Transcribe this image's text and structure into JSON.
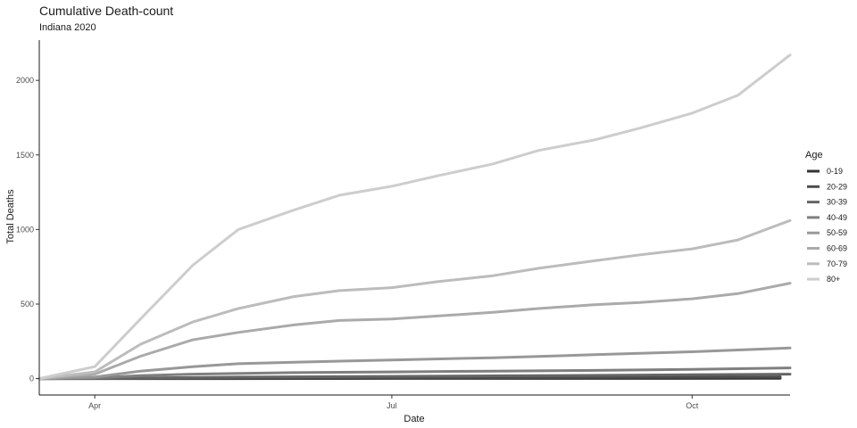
{
  "chart_data": {
    "type": "line",
    "title": "Cumulative Death-count",
    "subtitle": "Indiana 2020",
    "xlabel": "Date",
    "ylabel": "Total Deaths",
    "x_ticks": [
      "Apr",
      "Jul",
      "Oct"
    ],
    "x_tick_dates": [
      "2020-04-01",
      "2020-07-01",
      "2020-10-01"
    ],
    "xlim": [
      "2020-03-15",
      "2020-10-31"
    ],
    "ylim": [
      -110,
      2270
    ],
    "y_ticks": [
      0,
      500,
      1000,
      1500,
      2000
    ],
    "grid": false,
    "legend_title": "Age",
    "legend_position": "right",
    "series": [
      {
        "name": "0-19",
        "color": "#333333",
        "points": [
          [
            "2020-03-15",
            0
          ],
          [
            "2020-05-01",
            0
          ],
          [
            "2020-07-01",
            1
          ],
          [
            "2020-09-01",
            1
          ],
          [
            "2020-10-28",
            2
          ]
        ]
      },
      {
        "name": "20-29",
        "color": "#4d4d4d",
        "points": [
          [
            "2020-03-15",
            0
          ],
          [
            "2020-04-20",
            1
          ],
          [
            "2020-06-01",
            3
          ],
          [
            "2020-07-15",
            5
          ],
          [
            "2020-09-01",
            8
          ],
          [
            "2020-10-28",
            12
          ]
        ]
      },
      {
        "name": "30-39",
        "color": "#666666",
        "points": [
          [
            "2020-03-15",
            0
          ],
          [
            "2020-04-15",
            4
          ],
          [
            "2020-05-15",
            10
          ],
          [
            "2020-07-01",
            15
          ],
          [
            "2020-08-15",
            20
          ],
          [
            "2020-10-01",
            26
          ],
          [
            "2020-10-31",
            30
          ]
        ]
      },
      {
        "name": "40-49",
        "color": "#7f7f7f",
        "points": [
          [
            "2020-03-15",
            0
          ],
          [
            "2020-04-01",
            5
          ],
          [
            "2020-04-15",
            20
          ],
          [
            "2020-05-01",
            30
          ],
          [
            "2020-06-01",
            40
          ],
          [
            "2020-07-01",
            45
          ],
          [
            "2020-08-01",
            50
          ],
          [
            "2020-09-01",
            55
          ],
          [
            "2020-10-01",
            62
          ],
          [
            "2020-10-31",
            72
          ]
        ]
      },
      {
        "name": "50-59",
        "color": "#989898",
        "points": [
          [
            "2020-03-15",
            0
          ],
          [
            "2020-04-01",
            10
          ],
          [
            "2020-04-15",
            50
          ],
          [
            "2020-05-01",
            80
          ],
          [
            "2020-05-15",
            100
          ],
          [
            "2020-06-01",
            110
          ],
          [
            "2020-07-01",
            125
          ],
          [
            "2020-08-01",
            140
          ],
          [
            "2020-09-01",
            160
          ],
          [
            "2020-10-01",
            180
          ],
          [
            "2020-10-31",
            205
          ]
        ]
      },
      {
        "name": "60-69",
        "color": "#aaaaaa",
        "points": [
          [
            "2020-03-15",
            0
          ],
          [
            "2020-04-01",
            30
          ],
          [
            "2020-04-15",
            150
          ],
          [
            "2020-05-01",
            260
          ],
          [
            "2020-05-15",
            310
          ],
          [
            "2020-06-01",
            360
          ],
          [
            "2020-06-15",
            390
          ],
          [
            "2020-07-01",
            400
          ],
          [
            "2020-07-15",
            420
          ],
          [
            "2020-08-01",
            445
          ],
          [
            "2020-08-15",
            470
          ],
          [
            "2020-09-01",
            495
          ],
          [
            "2020-09-15",
            510
          ],
          [
            "2020-10-01",
            535
          ],
          [
            "2020-10-15",
            570
          ],
          [
            "2020-10-31",
            640
          ]
        ]
      },
      {
        "name": "70-79",
        "color": "#bcbcbc",
        "points": [
          [
            "2020-03-15",
            0
          ],
          [
            "2020-04-01",
            45
          ],
          [
            "2020-04-15",
            230
          ],
          [
            "2020-05-01",
            380
          ],
          [
            "2020-05-15",
            470
          ],
          [
            "2020-06-01",
            550
          ],
          [
            "2020-06-15",
            590
          ],
          [
            "2020-07-01",
            610
          ],
          [
            "2020-07-15",
            650
          ],
          [
            "2020-08-01",
            690
          ],
          [
            "2020-08-15",
            740
          ],
          [
            "2020-09-01",
            790
          ],
          [
            "2020-09-15",
            830
          ],
          [
            "2020-10-01",
            870
          ],
          [
            "2020-10-15",
            930
          ],
          [
            "2020-10-31",
            1060
          ]
        ]
      },
      {
        "name": "80+",
        "color": "#cdcdcd",
        "points": [
          [
            "2020-03-15",
            0
          ],
          [
            "2020-04-01",
            80
          ],
          [
            "2020-04-15",
            400
          ],
          [
            "2020-05-01",
            760
          ],
          [
            "2020-05-15",
            1000
          ],
          [
            "2020-06-01",
            1130
          ],
          [
            "2020-06-15",
            1230
          ],
          [
            "2020-07-01",
            1290
          ],
          [
            "2020-07-15",
            1360
          ],
          [
            "2020-08-01",
            1440
          ],
          [
            "2020-08-15",
            1530
          ],
          [
            "2020-09-01",
            1600
          ],
          [
            "2020-09-15",
            1680
          ],
          [
            "2020-10-01",
            1780
          ],
          [
            "2020-10-15",
            1900
          ],
          [
            "2020-10-31",
            2170
          ]
        ]
      }
    ]
  }
}
